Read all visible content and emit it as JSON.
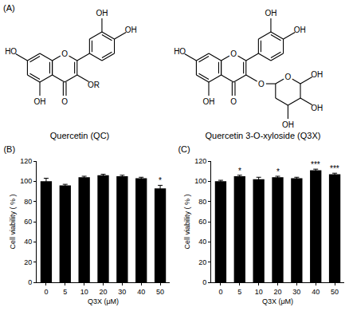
{
  "figure": {
    "label": "(A)",
    "structures": [
      {
        "name": "Quercetin (QC)",
        "ring_o": "O",
        "c7": "HO",
        "c5": "OH",
        "c4": "O",
        "c3": "OR",
        "c3p": "OH",
        "c4p": "OH"
      },
      {
        "name": "Quercetin 3-O-xyloside (Q3X)",
        "ring_o": "O",
        "c7": "HO",
        "c5": "OH",
        "c4": "O",
        "c3": "O",
        "c3p": "OH",
        "c4p": "OH",
        "sugar_o": "O",
        "sugar_oh": [
          "OH",
          "OH",
          "OH"
        ]
      }
    ]
  },
  "chart_data": [
    {
      "type": "bar",
      "title": "(B)",
      "x_label": "Q3X (μM)",
      "y_label": "Cell viability ( % )",
      "categories": [
        "0",
        "5",
        "10",
        "20",
        "30",
        "40",
        "50"
      ],
      "values": [
        100,
        96,
        104,
        106,
        105,
        103,
        93
      ],
      "errors": [
        3,
        1,
        1,
        1,
        1,
        1,
        3
      ],
      "color": "#000000",
      "ylim": [
        0,
        120
      ],
      "yticks": [
        0,
        20,
        40,
        60,
        80,
        100,
        120
      ],
      "grid": false,
      "annotations": [
        {
          "category": "50",
          "text": "*"
        }
      ]
    },
    {
      "type": "bar",
      "title": "(C)",
      "x_label": "Q3X (μM)",
      "y_label": "Cell viability ( % )",
      "categories": [
        "0",
        "5",
        "10",
        "20",
        "30",
        "40",
        "50"
      ],
      "values": [
        100,
        105,
        102,
        104,
        103,
        111,
        107
      ],
      "errors": [
        1,
        1,
        2,
        1,
        1,
        1,
        1
      ],
      "color": "#000000",
      "ylim": [
        0,
        120
      ],
      "yticks": [
        0,
        20,
        40,
        60,
        80,
        100,
        120
      ],
      "grid": false,
      "annotations": [
        {
          "category": "5",
          "text": "*"
        },
        {
          "category": "20",
          "text": "*"
        },
        {
          "category": "40",
          "text": "***"
        },
        {
          "category": "50",
          "text": "***"
        }
      ]
    }
  ]
}
